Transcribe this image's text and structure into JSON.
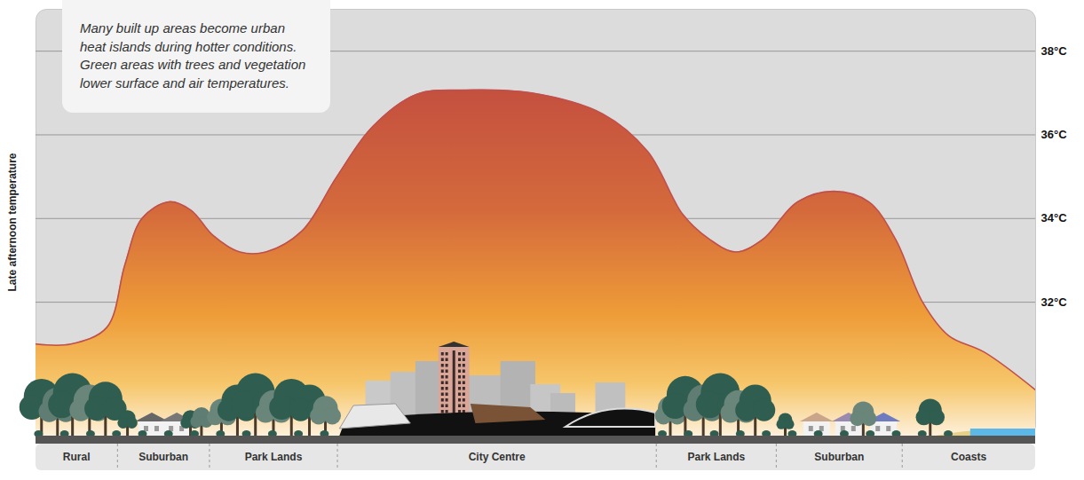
{
  "chart_data": {
    "type": "area",
    "annotation": "Many built up areas become urban heat islands during hotter conditions. Green areas with trees and vegetation lower surface and air temperatures.",
    "y_label": "Late afternoon temperature",
    "x": [
      0,
      3.5,
      7.1,
      8.9,
      10.6,
      13.3,
      15.5,
      17.7,
      20.4,
      23.0,
      26.6,
      30.1,
      33.7,
      38.1,
      42.6,
      49.6,
      56.7,
      61.2,
      64.7,
      67.4,
      70.0,
      72.7,
      76.2,
      79.8,
      83.3,
      86.0,
      88.7,
      91.3,
      94.9,
      100
    ],
    "values": [
      31.0,
      31.0,
      31.4,
      32.9,
      34.0,
      34.4,
      34.2,
      33.6,
      33.2,
      33.2,
      33.7,
      35.0,
      36.2,
      36.97,
      37.07,
      37.0,
      36.5,
      35.6,
      34.1,
      33.5,
      33.2,
      33.5,
      34.4,
      34.65,
      34.4,
      33.5,
      32.0,
      31.2,
      30.8,
      29.9
    ],
    "color": "#c0504d",
    "xlim": [
      0,
      100
    ],
    "ylim": [
      28.8,
      39
    ],
    "yticks": [
      {
        "value": 32,
        "label": "32°C"
      },
      {
        "value": 34,
        "label": "34°C"
      },
      {
        "value": 36,
        "label": "36°C"
      },
      {
        "value": 38,
        "label": "38°C"
      }
    ],
    "grid": true,
    "tick_labels": "y",
    "zones": [
      {
        "label": "Rural",
        "start": 0,
        "end": 8.2
      },
      {
        "label": "Suburban",
        "start": 8.2,
        "end": 17.4
      },
      {
        "label": "Park Lands",
        "start": 17.4,
        "end": 30.2
      },
      {
        "label": "City Centre",
        "start": 30.2,
        "end": 62.1
      },
      {
        "label": "Park Lands",
        "start": 62.1,
        "end": 74.1
      },
      {
        "label": "Suburban",
        "start": 74.1,
        "end": 86.7
      },
      {
        "label": "Coasts",
        "start": 86.7,
        "end": 100
      }
    ]
  }
}
